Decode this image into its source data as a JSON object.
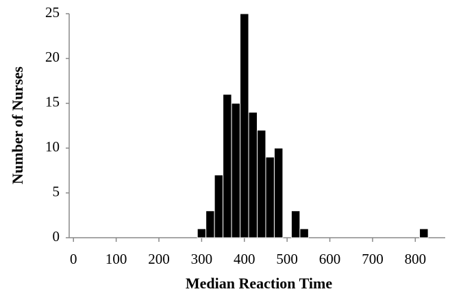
{
  "chart_data": {
    "type": "histogram",
    "x_label": "Median Reaction Time",
    "y_label": "Number of Nurses",
    "bins": [
      290,
      310,
      330,
      350,
      370,
      390,
      410,
      430,
      450,
      470,
      490,
      510,
      530,
      550,
      570,
      590,
      610,
      630,
      650,
      670,
      690,
      710,
      730,
      750,
      770,
      790,
      810,
      830
    ],
    "values": [
      1,
      3,
      7,
      16,
      15,
      25,
      14,
      12,
      9,
      10,
      0,
      3,
      1,
      0,
      0,
      0,
      0,
      0,
      0,
      0,
      0,
      0,
      0,
      0,
      0,
      0,
      1
    ],
    "color": "#000000",
    "xlim": [
      -10,
      870
    ],
    "xticks": [
      0,
      100,
      200,
      300,
      400,
      500,
      600,
      700,
      800
    ],
    "ylim": [
      0,
      25
    ],
    "yticks": [
      0,
      5,
      10,
      15,
      20,
      25
    ],
    "grid": false
  }
}
